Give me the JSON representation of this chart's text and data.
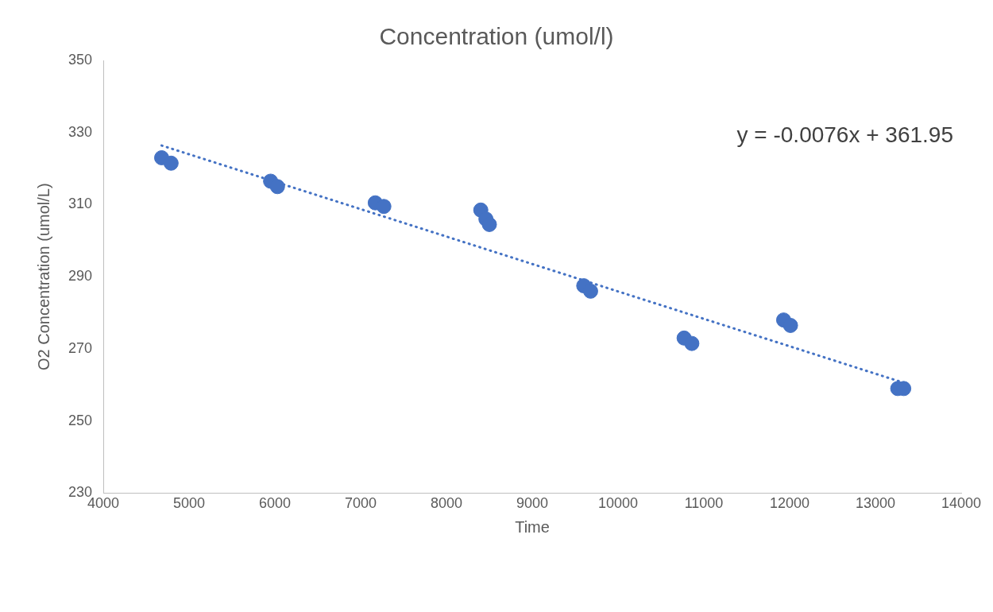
{
  "chart_data": {
    "type": "scatter",
    "title": "Concentration (umol/l)",
    "xlabel": "Time",
    "ylabel": "O2 Concentration (umol/L)",
    "xlim": [
      4000,
      14000
    ],
    "xticks": [
      4000,
      5000,
      6000,
      7000,
      8000,
      9000,
      10000,
      11000,
      12000,
      13000,
      14000
    ],
    "ylim": [
      230,
      350
    ],
    "yticks": [
      230,
      250,
      270,
      290,
      310,
      330,
      350
    ],
    "grid": false,
    "legend": false,
    "marker": "circle",
    "series": [
      {
        "color": "#4472c4",
        "x": [
          4680,
          4790,
          5950,
          6030,
          7170,
          7270,
          8400,
          8460,
          8500,
          9600,
          9680,
          10770,
          10860,
          11930,
          12010,
          13260,
          13330
        ],
        "values": [
          323,
          321.5,
          316.5,
          315,
          310.5,
          309.5,
          308.5,
          306,
          304.5,
          287.5,
          286,
          273,
          271.5,
          278,
          276.5,
          259,
          259
        ]
      },
      {
        "type": "line",
        "color": "#4472c4",
        "line_style": "dotted",
        "marker": "none",
        "x": [
          4680,
          13330
        ],
        "values": [
          326.4,
          260.6
        ]
      }
    ],
    "annotations": [
      "y = -0.0076x + 361.95"
    ]
  }
}
